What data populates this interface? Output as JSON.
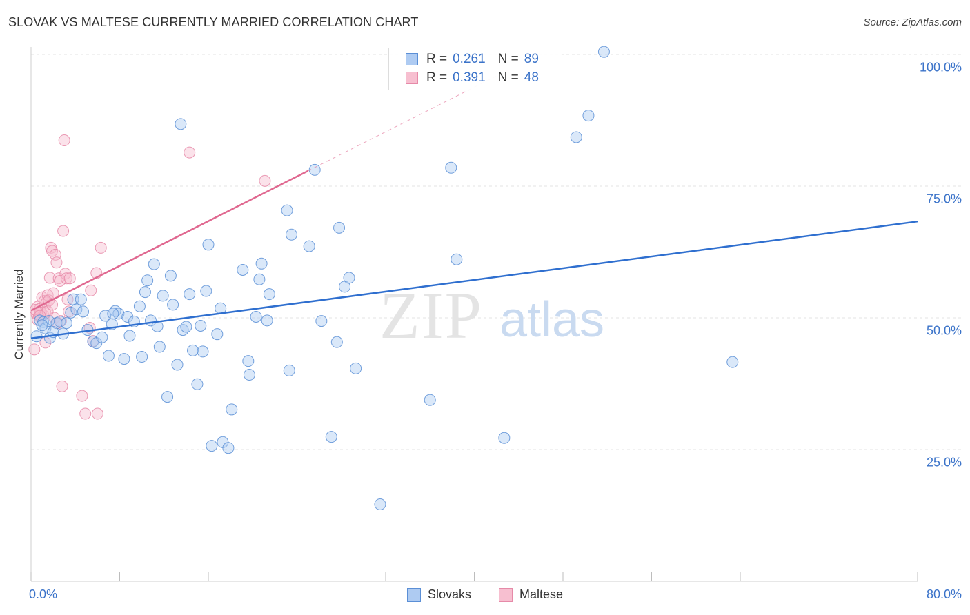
{
  "header": {
    "title": "SLOVAK VS MALTESE CURRENTLY MARRIED CORRELATION CHART",
    "source": "Source: ZipAtlas.com"
  },
  "legend": {
    "r_label": "R =",
    "n_label": "N =",
    "rows": [
      {
        "series": "Slovaks",
        "r": "0.261",
        "n": "89"
      },
      {
        "series": "Maltese",
        "r": "0.391",
        "n": "48"
      }
    ]
  },
  "watermark": {
    "zip": "ZIP",
    "atlas": "atlas"
  },
  "colors": {
    "slovak_fill": "#aecbf2",
    "slovak_stroke": "#5b8fd6",
    "slovak_line": "#2f6fcf",
    "maltese_fill": "#f7bfd0",
    "maltese_stroke": "#e68aa8",
    "maltese_line": "#e06890",
    "tick_text": "#3b73c9",
    "grid": "#e3e3e3"
  },
  "chart_data": {
    "type": "scatter",
    "title": "SLOVAK VS MALTESE CURRENTLY MARRIED CORRELATION CHART",
    "xlabel": "",
    "ylabel": "Currently Married",
    "xlim": [
      0,
      80
    ],
    "ylim": [
      0,
      102
    ],
    "x_tick_labels": [
      {
        "value": 0,
        "label": "0.0%"
      },
      {
        "value": 80,
        "label": "80.0%"
      }
    ],
    "y_tick_labels": [
      {
        "value": 25,
        "label": "25.0%"
      },
      {
        "value": 50,
        "label": "50.0%"
      },
      {
        "value": 75,
        "label": "75.0%"
      },
      {
        "value": 100,
        "label": "100.0%"
      }
    ],
    "x_minor_ticks": [
      0,
      8,
      16,
      24,
      32,
      40,
      48,
      56,
      64,
      72,
      80
    ],
    "series": [
      {
        "name": "Slovaks",
        "r": 0.261,
        "n": 89,
        "trend": {
          "x": [
            0,
            80
          ],
          "y": [
            46.1,
            68.3
          ]
        },
        "points": [
          [
            0.5,
            46.5
          ],
          [
            0.8,
            49.5
          ],
          [
            1.1,
            49.2
          ],
          [
            1.3,
            48.0
          ],
          [
            1.6,
            49.4
          ],
          [
            1.7,
            46.2
          ],
          [
            2.3,
            49.0
          ],
          [
            2.6,
            49.3
          ],
          [
            2.9,
            47.0
          ],
          [
            3.2,
            49.0
          ],
          [
            3.6,
            51.0
          ],
          [
            3.8,
            53.5
          ],
          [
            4.1,
            51.6
          ],
          [
            4.5,
            53.5
          ],
          [
            4.7,
            51.2
          ],
          [
            5.1,
            47.7
          ],
          [
            5.6,
            45.5
          ],
          [
            5.9,
            45.2
          ],
          [
            6.4,
            46.3
          ],
          [
            6.7,
            50.4
          ],
          [
            7.0,
            42.8
          ],
          [
            7.3,
            48.8
          ],
          [
            7.6,
            51.3
          ],
          [
            7.9,
            50.8
          ],
          [
            8.4,
            42.2
          ],
          [
            8.7,
            50.2
          ],
          [
            8.9,
            46.6
          ],
          [
            9.3,
            49.3
          ],
          [
            9.8,
            52.2
          ],
          [
            10.0,
            42.6
          ],
          [
            10.3,
            54.9
          ],
          [
            10.5,
            57.1
          ],
          [
            10.8,
            49.5
          ],
          [
            11.1,
            60.2
          ],
          [
            11.4,
            48.4
          ],
          [
            11.6,
            44.5
          ],
          [
            11.9,
            54.2
          ],
          [
            12.3,
            35.0
          ],
          [
            12.6,
            58.0
          ],
          [
            12.8,
            52.5
          ],
          [
            13.2,
            41.1
          ],
          [
            13.5,
            86.8
          ],
          [
            13.7,
            47.7
          ],
          [
            14.0,
            48.3
          ],
          [
            14.3,
            54.5
          ],
          [
            14.6,
            43.8
          ],
          [
            15.0,
            37.4
          ],
          [
            15.3,
            48.5
          ],
          [
            15.5,
            43.6
          ],
          [
            15.8,
            55.1
          ],
          [
            16.0,
            63.9
          ],
          [
            16.3,
            25.7
          ],
          [
            16.8,
            46.9
          ],
          [
            17.1,
            51.8
          ],
          [
            17.3,
            26.4
          ],
          [
            17.8,
            25.3
          ],
          [
            18.1,
            32.6
          ],
          [
            19.1,
            59.1
          ],
          [
            19.6,
            41.8
          ],
          [
            19.7,
            39.2
          ],
          [
            20.3,
            50.2
          ],
          [
            20.6,
            57.3
          ],
          [
            20.8,
            60.3
          ],
          [
            21.3,
            49.5
          ],
          [
            21.5,
            54.5
          ],
          [
            23.1,
            70.4
          ],
          [
            23.3,
            40.0
          ],
          [
            23.5,
            65.8
          ],
          [
            25.1,
            63.6
          ],
          [
            25.6,
            78.1
          ],
          [
            26.2,
            49.4
          ],
          [
            27.1,
            27.4
          ],
          [
            27.6,
            45.4
          ],
          [
            27.8,
            67.1
          ],
          [
            28.3,
            55.9
          ],
          [
            28.7,
            57.6
          ],
          [
            29.3,
            40.4
          ],
          [
            31.5,
            14.6
          ],
          [
            36.0,
            34.4
          ],
          [
            37.9,
            78.5
          ],
          [
            38.4,
            61.1
          ],
          [
            42.7,
            27.2
          ],
          [
            49.2,
            84.3
          ],
          [
            50.3,
            88.4
          ],
          [
            51.7,
            100.5
          ],
          [
            63.3,
            41.6
          ],
          [
            1.0,
            48.6
          ],
          [
            2.0,
            47.3
          ],
          [
            7.4,
            50.8
          ]
        ]
      },
      {
        "name": "Maltese",
        "r": 0.391,
        "n": 48,
        "trend": {
          "x": [
            0,
            25
          ],
          "y": [
            51.4,
            77.9
          ]
        },
        "points": [
          [
            0.3,
            44.0
          ],
          [
            0.5,
            50.7
          ],
          [
            0.6,
            52.1
          ],
          [
            0.7,
            50.3
          ],
          [
            0.8,
            51.7
          ],
          [
            0.9,
            51.0
          ],
          [
            1.0,
            53.9
          ],
          [
            1.1,
            50.5
          ],
          [
            1.2,
            53.2
          ],
          [
            1.3,
            50.9
          ],
          [
            1.4,
            52.9
          ],
          [
            1.5,
            54.3
          ],
          [
            1.6,
            53.3
          ],
          [
            1.7,
            57.6
          ],
          [
            1.8,
            63.3
          ],
          [
            1.9,
            62.7
          ],
          [
            2.0,
            54.7
          ],
          [
            2.1,
            50.0
          ],
          [
            2.2,
            62.0
          ],
          [
            2.3,
            60.5
          ],
          [
            2.5,
            57.5
          ],
          [
            2.6,
            57.0
          ],
          [
            2.7,
            49.4
          ],
          [
            2.8,
            37.0
          ],
          [
            2.9,
            66.5
          ],
          [
            3.0,
            83.7
          ],
          [
            3.1,
            58.4
          ],
          [
            3.2,
            57.5
          ],
          [
            3.3,
            53.5
          ],
          [
            3.5,
            57.5
          ],
          [
            4.6,
            35.2
          ],
          [
            4.9,
            31.8
          ],
          [
            5.3,
            48.1
          ],
          [
            5.4,
            55.2
          ],
          [
            5.6,
            45.6
          ],
          [
            5.9,
            58.5
          ],
          [
            6.0,
            31.8
          ],
          [
            6.3,
            63.3
          ],
          [
            14.3,
            81.4
          ],
          [
            21.1,
            76.0
          ],
          [
            0.4,
            51.5
          ],
          [
            1.5,
            51.2
          ],
          [
            2.4,
            49.0
          ],
          [
            0.6,
            49.6
          ],
          [
            1.3,
            45.3
          ],
          [
            3.4,
            51.2
          ],
          [
            1.9,
            52.5
          ],
          [
            0.8,
            50.4
          ]
        ]
      }
    ]
  }
}
